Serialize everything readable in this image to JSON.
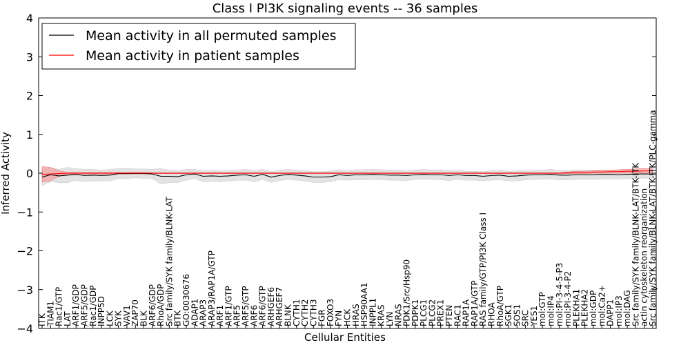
{
  "chart_data": {
    "type": "line",
    "title": "Class I PI3K signaling events -- 36 samples",
    "xlabel": "Cellular Entities",
    "ylabel": "Inferred Activity",
    "ylim": [
      -4,
      4
    ],
    "yticks": [
      -4,
      -3,
      -2,
      -1,
      0,
      1,
      2,
      3,
      4
    ],
    "ytick_labels": [
      "−4",
      "−3",
      "−2",
      "−1",
      "0",
      "1",
      "2",
      "3",
      "4"
    ],
    "categories": [
      "ITK",
      "TIAM1",
      "Rac1/GTP",
      "LAT",
      "ARF1/GDP",
      "ARF5/GDP",
      "Rac1/GDP",
      "INPP5D",
      "LCK",
      "SYK",
      "VAV1",
      "ZAP70",
      "BLK",
      "ARF6/GDP",
      "RhoA/GDP",
      "Src family/SYK family/BLNK-LAT",
      "BTK",
      "GO:0030676",
      "ADAP1",
      "ARAP3",
      "ARAP3/RAP1A/GTP",
      "ARF1",
      "ARF1/GTP",
      "ARF5",
      "ARF5/GTP",
      "ARF6",
      "ARF6/GTP",
      "ARHGEF6",
      "ARHGEF7",
      "BLNK",
      "CYTH1",
      "CYTH2",
      "CYTH3",
      "FGR",
      "FOXO3",
      "FYN",
      "HCK",
      "HRAS",
      "HSP90AA1",
      "INPPL1",
      "KRAS",
      "LYN",
      "NRAS",
      "PDK1/Src/Hsp90",
      "PDPK1",
      "PLCG1",
      "PLCG2",
      "PREX1",
      "PTEN",
      "RAC1",
      "RAP1A",
      "RAP1A/GTP",
      "RAS family/GTP/PI3K Class I",
      "RHOA",
      "RhoA/GTP",
      "SGK1",
      "SOS1",
      "SRC",
      "YES1",
      "mol:GTP",
      "mol:IP4",
      "mol:PI-3-4-5-P3",
      "mol:PI-3-4-P2",
      "PLEKHA1",
      "PLEKHA2",
      "mol:GDP",
      "mol:Ca2+",
      "DAPP1",
      "mol:IP3",
      "mol:DAG",
      "Src family/SYK family/BLNK-LAT/BTK-ITK",
      "actin cytoskeleton reorganization",
      "Src family/SYK family/BLNK-LAT/BTK-ITK/PLC-gamma"
    ],
    "series": [
      {
        "name": "Mean activity in all permuted samples",
        "color": "#000000",
        "values": [
          -0.1,
          -0.04,
          -0.07,
          -0.05,
          -0.03,
          -0.06,
          -0.05,
          -0.06,
          -0.05,
          -0.01,
          -0.01,
          -0.01,
          -0.01,
          -0.02,
          -0.08,
          -0.08,
          -0.09,
          -0.04,
          -0.02,
          -0.08,
          -0.07,
          -0.08,
          -0.07,
          -0.05,
          -0.04,
          -0.08,
          -0.03,
          -0.1,
          -0.06,
          -0.03,
          -0.05,
          -0.07,
          -0.1,
          -0.1,
          -0.09,
          -0.04,
          -0.06,
          -0.04,
          -0.04,
          -0.03,
          -0.04,
          -0.05,
          -0.05,
          -0.06,
          -0.04,
          -0.03,
          -0.04,
          -0.04,
          -0.06,
          -0.04,
          -0.06,
          -0.06,
          -0.08,
          -0.06,
          -0.05,
          -0.08,
          -0.07,
          -0.05,
          -0.04,
          -0.04,
          -0.03,
          -0.05,
          -0.05,
          -0.04,
          -0.04,
          -0.04,
          -0.03,
          -0.03,
          -0.04,
          -0.03,
          -0.02,
          -0.02,
          -0.02
        ],
        "band_upper": [
          0.1,
          0.13,
          0.1,
          0.15,
          0.12,
          0.1,
          0.1,
          0.08,
          0.1,
          0.12,
          0.12,
          0.11,
          0.11,
          0.1,
          0.12,
          0.08,
          0.06,
          0.1,
          0.1,
          0.06,
          0.07,
          0.06,
          0.06,
          0.08,
          0.1,
          0.06,
          0.1,
          0.04,
          0.07,
          0.1,
          0.08,
          0.06,
          0.04,
          0.04,
          0.05,
          0.09,
          0.06,
          0.09,
          0.09,
          0.1,
          0.09,
          0.08,
          0.08,
          0.06,
          0.08,
          0.1,
          0.08,
          0.09,
          0.06,
          0.08,
          0.05,
          0.05,
          0.04,
          0.06,
          0.07,
          0.05,
          0.06,
          0.07,
          0.08,
          0.08,
          0.1,
          0.07,
          0.07,
          0.08,
          0.08,
          0.08,
          0.08,
          0.08,
          0.08,
          0.08,
          0.07,
          0.06,
          0.06
        ],
        "band_lower": [
          -0.32,
          -0.22,
          -0.24,
          -0.25,
          -0.18,
          -0.22,
          -0.2,
          -0.2,
          -0.2,
          -0.14,
          -0.14,
          -0.12,
          -0.13,
          -0.14,
          -0.28,
          -0.24,
          -0.24,
          -0.18,
          -0.14,
          -0.22,
          -0.21,
          -0.22,
          -0.2,
          -0.18,
          -0.18,
          -0.22,
          -0.16,
          -0.24,
          -0.19,
          -0.16,
          -0.18,
          -0.2,
          -0.24,
          -0.24,
          -0.22,
          -0.17,
          -0.18,
          -0.17,
          -0.17,
          -0.16,
          -0.17,
          -0.18,
          -0.18,
          -0.19,
          -0.16,
          -0.16,
          -0.16,
          -0.17,
          -0.19,
          -0.16,
          -0.18,
          -0.18,
          -0.2,
          -0.18,
          -0.17,
          -0.2,
          -0.2,
          -0.17,
          -0.16,
          -0.16,
          -0.15,
          -0.17,
          -0.17,
          -0.16,
          -0.16,
          -0.16,
          -0.15,
          -0.15,
          -0.15,
          -0.14,
          -0.13,
          -0.13,
          -0.12
        ]
      },
      {
        "name": "Mean activity in patient samples",
        "color": "#ff0000",
        "values": [
          -0.03,
          -0.02,
          -0.01,
          0,
          0,
          0,
          0,
          0,
          0,
          0,
          0,
          0,
          0,
          0,
          0,
          0,
          0,
          0,
          0,
          0,
          0,
          0,
          0,
          0,
          0,
          0,
          0,
          0,
          0,
          0,
          0,
          0,
          0,
          0,
          0,
          0,
          0,
          0,
          0,
          0,
          0,
          0,
          0,
          0,
          0,
          0,
          0,
          0,
          0,
          0,
          0,
          0,
          0,
          0,
          0,
          0,
          0,
          0,
          0,
          0,
          0,
          0,
          0.01,
          0.02,
          0.02,
          0.03,
          0.03,
          0.04,
          0.04,
          0.05,
          0.05,
          0.06,
          0.06
        ],
        "band_upper": [
          0.17,
          0.15,
          0.06,
          0.02,
          0.02,
          0.02,
          0.02,
          0.02,
          0.02,
          0.02,
          0.02,
          0.02,
          0.02,
          0.01,
          0.01,
          0.01,
          0.01,
          0.01,
          0.01,
          0.01,
          0.01,
          0.01,
          0.01,
          0.01,
          0.01,
          0.01,
          0.01,
          0.01,
          0.01,
          0.01,
          0.01,
          0.01,
          0.01,
          0.01,
          0.01,
          0.01,
          0.01,
          0.01,
          0.01,
          0.01,
          0.01,
          0.01,
          0.01,
          0.01,
          0.01,
          0.01,
          0.01,
          0.01,
          0.01,
          0.01,
          0.01,
          0.01,
          0.01,
          0.01,
          0.01,
          0.01,
          0.01,
          0.01,
          0.01,
          0.01,
          0.01,
          0.01,
          0.03,
          0.05,
          0.05,
          0.06,
          0.07,
          0.08,
          0.09,
          0.1,
          0.11,
          0.12,
          0.13
        ],
        "band_lower": [
          -0.23,
          -0.19,
          -0.08,
          -0.02,
          -0.02,
          -0.02,
          -0.02,
          -0.02,
          -0.02,
          -0.02,
          -0.02,
          -0.01,
          -0.01,
          -0.01,
          -0.01,
          -0.01,
          -0.01,
          -0.01,
          -0.01,
          -0.01,
          -0.01,
          -0.01,
          -0.01,
          -0.01,
          -0.01,
          -0.01,
          -0.01,
          -0.01,
          -0.01,
          -0.01,
          -0.01,
          -0.01,
          -0.01,
          -0.01,
          -0.01,
          -0.01,
          -0.01,
          -0.01,
          -0.01,
          -0.01,
          -0.01,
          -0.01,
          -0.01,
          -0.01,
          -0.01,
          -0.01,
          -0.01,
          -0.01,
          -0.01,
          -0.01,
          -0.01,
          -0.01,
          -0.01,
          -0.01,
          -0.01,
          -0.01,
          -0.01,
          -0.01,
          -0.01,
          -0.01,
          -0.01,
          -0.01,
          -0.01,
          -0.01,
          -0.01,
          0,
          0,
          0,
          0,
          0,
          0,
          0,
          0
        ]
      }
    ],
    "band_colors": [
      "#d9d9d9",
      "#f4a0a0"
    ],
    "legend": {
      "location": "upper-left",
      "entries": [
        "Mean activity in all permuted samples",
        "Mean activity in patient samples"
      ]
    }
  }
}
